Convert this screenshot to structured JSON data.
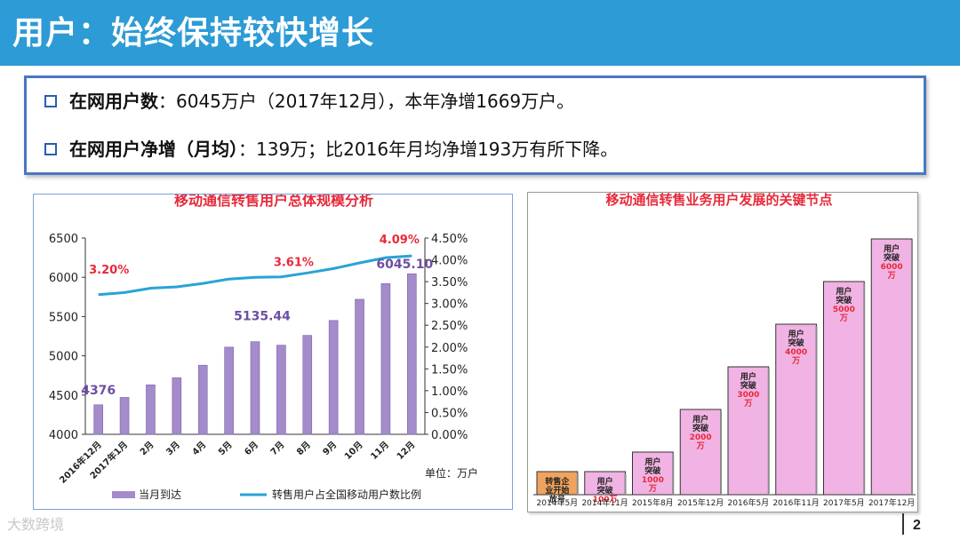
{
  "header": {
    "title": "用户：始终保持较快增长"
  },
  "bullets": [
    {
      "bold": "在网用户数",
      "text": "：6045万户（2017年12月），本年净增1669万户。"
    },
    {
      "bold": "在网用户净增（月均）",
      "text": "：139万；比2016年月均净增193万有所下降。"
    }
  ],
  "colors": {
    "header_bg": "#2c9bd6",
    "bar": "#a48bc9",
    "line": "#29a3d6",
    "title_red": "#e8293a",
    "label_purple": "#6d4fa3"
  },
  "chart_data": [
    {
      "type": "bar",
      "title": "移动通信转售用户总体规模分析",
      "categories": [
        "2016年12月",
        "2017年1月",
        "2月",
        "3月",
        "4月",
        "5月",
        "6月",
        "7月",
        "8月",
        "9月",
        "10月",
        "11月",
        "12月"
      ],
      "series": [
        {
          "name": "当月到达",
          "axis": "left",
          "values": [
            4376,
            4470,
            4630,
            4720,
            4880,
            5110,
            5180,
            5135.44,
            5260,
            5450,
            5720,
            5920,
            6045.1
          ]
        },
        {
          "name": "转售用户占全国移动用户数比例",
          "axis": "right",
          "type": "line",
          "values": [
            3.2,
            3.25,
            3.35,
            3.38,
            3.46,
            3.56,
            3.6,
            3.61,
            3.7,
            3.8,
            3.93,
            4.05,
            4.09
          ]
        }
      ],
      "ylim": [
        4000,
        6500
      ],
      "yticks": [
        "4000",
        "4500",
        "5000",
        "5500",
        "6000",
        "6500"
      ],
      "y2lim": [
        0,
        4.5
      ],
      "y2ticks": [
        "0.00%",
        "0.50%",
        "1.00%",
        "1.50%",
        "2.00%",
        "2.50%",
        "3.00%",
        "3.50%",
        "4.00%",
        "4.50%"
      ],
      "annotations": {
        "bar_first": "4376",
        "bar_mid": "5135.44",
        "bar_last": "6045.10",
        "pct_first": "3.20%",
        "pct_mid": "3.61%",
        "pct_last": "4.09%"
      },
      "unit_label": "单位：万户",
      "legend": [
        "当月到达",
        "转售用户占全国移动用户数比例"
      ]
    },
    {
      "type": "bar",
      "title": "移动通信转售业务用户发展的关键节点",
      "categories": [
        "2014年5月",
        "2014年11月",
        "2015年8月",
        "2015年12月",
        "2016年5月",
        "2016年11月",
        "2017年5月",
        "2017年12月"
      ],
      "values": [
        0,
        100,
        1000,
        2000,
        3000,
        4000,
        5000,
        6000
      ],
      "bar_labels": [
        [
          "转售企",
          "业开始",
          "放号"
        ],
        [
          "用户",
          "突破",
          "100万"
        ],
        [
          "用户",
          "突破",
          "1000",
          "万"
        ],
        [
          "用户",
          "突破",
          "2000",
          "万"
        ],
        [
          "用户",
          "突破",
          "3000",
          "万"
        ],
        [
          "用户",
          "突破",
          "4000",
          "万"
        ],
        [
          "用户",
          "突破",
          "5000",
          "万"
        ],
        [
          "用户",
          "突破",
          "6000",
          "万"
        ]
      ]
    }
  ],
  "page_number": "2",
  "footer_watermark": "大数跨境"
}
